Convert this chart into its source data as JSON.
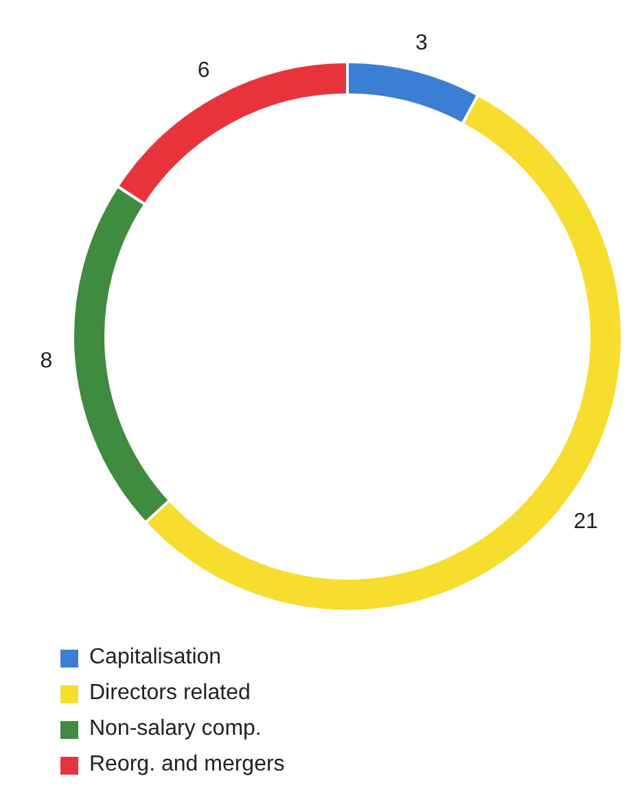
{
  "chart_data": {
    "type": "donut",
    "categories": [
      "Capitalisation",
      "Directors related",
      "Non-salary comp.",
      "Reorg. and mergers"
    ],
    "values": [
      3,
      21,
      8,
      6
    ],
    "colors": [
      "#3b7fd4",
      "#f6dd2e",
      "#3f8b3f",
      "#e8333b"
    ],
    "data_labels": true,
    "legend": "bottom left"
  }
}
